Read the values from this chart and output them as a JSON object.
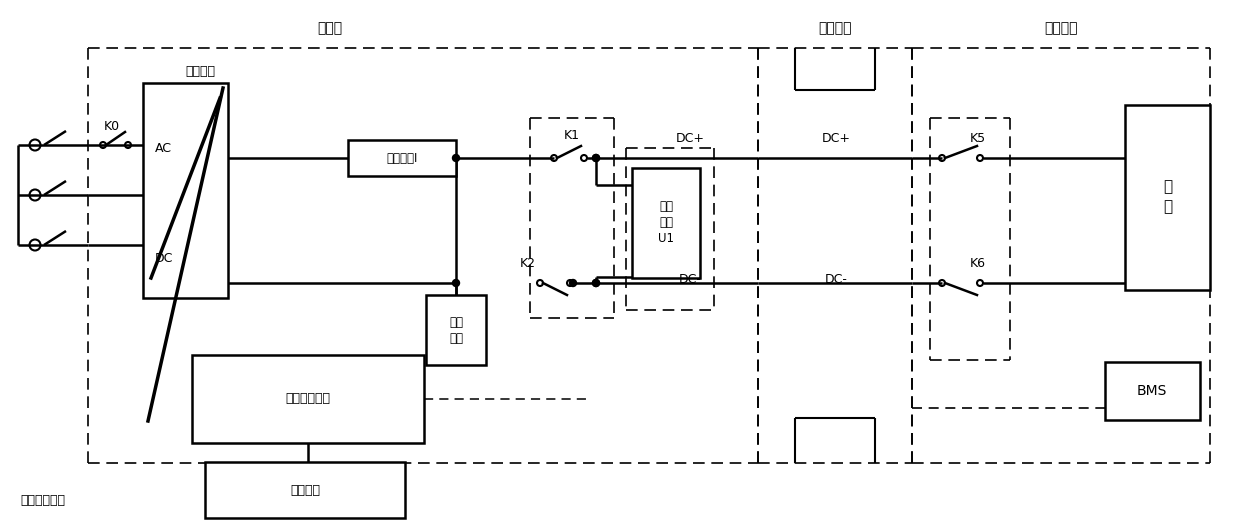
{
  "figsize": [
    12.4,
    5.27
  ],
  "dpi": 100,
  "labels": {
    "charging_pile": "充电桩",
    "vehicle_interface": "车辆接口",
    "ev": "电动汽车",
    "charging_module": "充电模块",
    "AC": "AC",
    "DC": "DC",
    "current_measure": "电流测量I",
    "K0": "K0",
    "K1": "K1",
    "K2": "K2",
    "K5": "K5",
    "K6": "K6",
    "DC_plus": "DC+",
    "DC_minus": "DC-",
    "insulation_detect": "绣缘\n检测",
    "voltage_measure": "电压\n测量\nU1",
    "controller": "充电桩控制器",
    "hmi": "人机界面",
    "battery": "电\n池",
    "bms": "BMS",
    "three_phase": "三相进线电源"
  }
}
